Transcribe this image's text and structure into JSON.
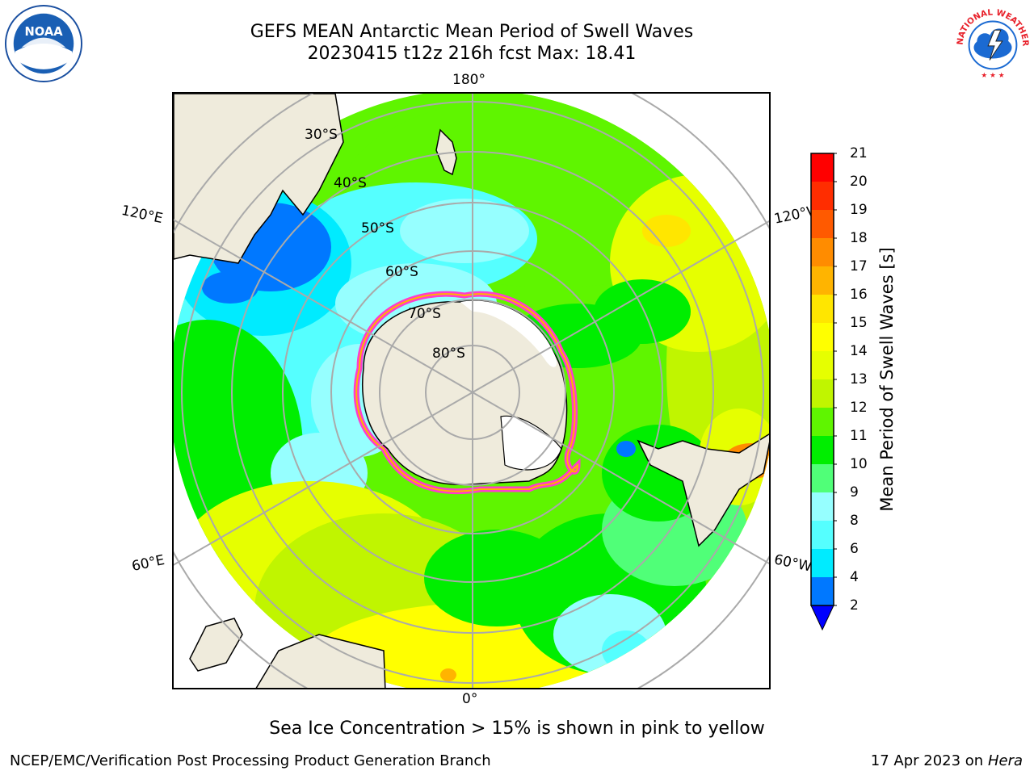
{
  "header": {
    "title_line1": "GEFS MEAN Antarctic Mean Period of Swell Waves",
    "title_line2": "20230415 t12z 216h fcst   Max: 18.41",
    "noaa_logo": "noaa-logo",
    "nws_logo": "nws-logo",
    "nws_logo_text": "NATIONAL WEATHER SERVICE"
  },
  "map": {
    "projection": "south-polar-stereographic",
    "lon_labels": {
      "top": "180°",
      "left_upper": "120°E",
      "right_upper": "120°W",
      "left_lower": "60°E",
      "right_lower": "60°W",
      "bottom": "0°"
    },
    "lat_labels": [
      "30°S",
      "40°S",
      "50°S",
      "60°S",
      "70°S",
      "80°S"
    ],
    "colors": {
      "land": "#efebdc",
      "ice_edge": "#ff3ccd",
      "ice_inner": "#ffb400",
      "grid": "#aaaaaa"
    }
  },
  "colorbar": {
    "label": "Mean Period of Swell Waves [s]",
    "ticks": [
      "2",
      "4",
      "6",
      "8",
      "9",
      "10",
      "11",
      "12",
      "13",
      "14",
      "15",
      "16",
      "17",
      "18",
      "19",
      "20",
      "21"
    ],
    "under_color": "#0000ff",
    "colors": [
      "#0078ff",
      "#00ebff",
      "#55ffff",
      "#96ffff",
      "#50ff78",
      "#00ee00",
      "#5ff500",
      "#c0f500",
      "#e6ff00",
      "#ffff00",
      "#ffe600",
      "#ffb400",
      "#ff8c00",
      "#ff5a00",
      "#ff2d00",
      "#ff0000"
    ]
  },
  "footer": {
    "note": "Sea Ice Concentration > 15% is shown in pink to yellow",
    "credit": "NCEP/EMC/Verification Post Processing Product Generation Branch",
    "date": "17 Apr 2023 on",
    "machine": "Hera"
  }
}
